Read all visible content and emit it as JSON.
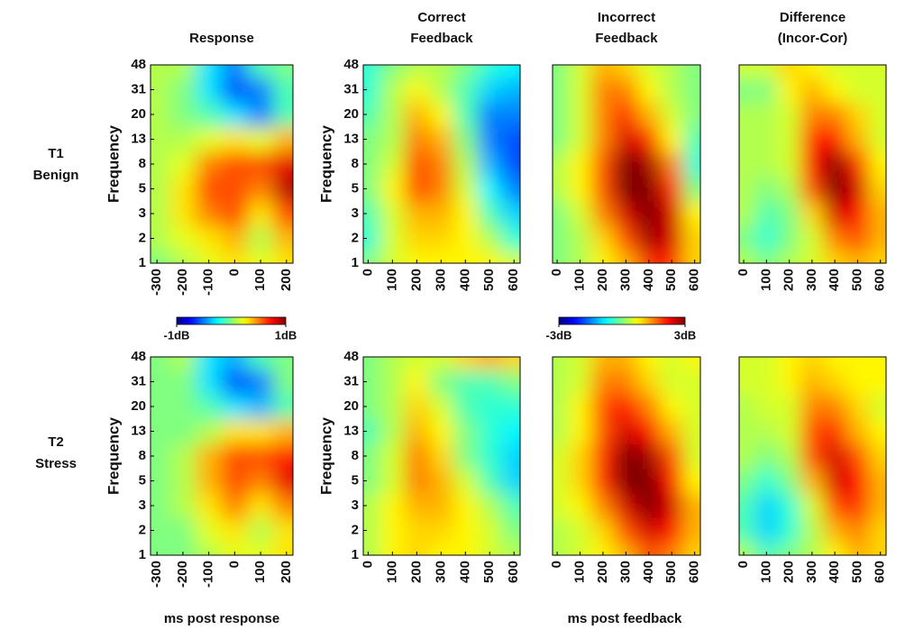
{
  "chart_data": [
    {
      "type": "heatmap",
      "title": [
        "Response"
      ],
      "ylabel": "Frequency",
      "colormap": "jet",
      "zlim": [
        -1,
        1
      ],
      "xlim": [
        -325,
        225
      ],
      "x": [
        -300,
        -200,
        -100,
        0,
        100,
        200
      ],
      "y": [
        1,
        2,
        3,
        5,
        8,
        13,
        20,
        31,
        48
      ],
      "z": [
        [
          0,
          0.1,
          0.2,
          0.3,
          0.2,
          0.3
        ],
        [
          0.1,
          0.2,
          0.3,
          0.4,
          0.1,
          0.4
        ],
        [
          0.1,
          0.3,
          0.5,
          0.6,
          0.3,
          0.6
        ],
        [
          0.1,
          0.3,
          0.6,
          0.6,
          0.5,
          0.9
        ],
        [
          0.1,
          0.2,
          0.5,
          0.6,
          0.6,
          0.8
        ],
        [
          0.1,
          0.1,
          0.2,
          0.3,
          0.2,
          0.4
        ],
        [
          0.1,
          0,
          -0.1,
          -0.3,
          -0.5,
          -0.1
        ],
        [
          0.1,
          0,
          -0.3,
          -0.6,
          -0.5,
          -0.1
        ],
        [
          0.1,
          0.1,
          -0.3,
          -0.5,
          -0.1,
          0
        ]
      ]
    },
    {
      "type": "heatmap",
      "title": [
        "Correct",
        "Feedback"
      ],
      "ylabel": "Frequency",
      "colormap": "jet",
      "zlim": [
        -3,
        3
      ],
      "xlim": [
        -20,
        625
      ],
      "x": [
        0,
        100,
        200,
        300,
        400,
        500,
        600
      ],
      "y": [
        1,
        2,
        3,
        5,
        8,
        13,
        20,
        31,
        48
      ],
      "z": [
        [
          0,
          0.5,
          0.8,
          0.8,
          0.8,
          0.8,
          0.5
        ],
        [
          -0.5,
          0.5,
          1,
          1,
          0.8,
          0.3,
          -0.5
        ],
        [
          -0.3,
          0.5,
          1.2,
          1.2,
          0.8,
          -0.3,
          -1
        ],
        [
          0,
          0.8,
          1.8,
          1.5,
          0.5,
          -0.8,
          -1.5
        ],
        [
          0,
          0.5,
          1.8,
          1.5,
          0.3,
          -1.2,
          -1.8
        ],
        [
          0,
          0.3,
          1.5,
          1.2,
          0,
          -1.5,
          -1.8
        ],
        [
          -0.3,
          0.3,
          1.2,
          0.8,
          -0.3,
          -1.5,
          -1.5
        ],
        [
          -0.5,
          0.3,
          0.8,
          0.3,
          -0.3,
          -1,
          -1.2
        ],
        [
          -0.5,
          0,
          0.3,
          0.3,
          0,
          -0.5,
          -0.8
        ]
      ]
    },
    {
      "type": "heatmap",
      "title": [
        "Incorrect",
        "Feedback"
      ],
      "colormap": "jet",
      "zlim": [
        -3,
        3
      ],
      "xlim": [
        -20,
        625
      ],
      "x": [
        0,
        100,
        200,
        300,
        400,
        500,
        600
      ],
      "z": [
        [
          0,
          0.3,
          0.8,
          1.2,
          2,
          2,
          1
        ],
        [
          0,
          0.3,
          1,
          1.8,
          2.8,
          2.5,
          1
        ],
        [
          0,
          0.5,
          1.5,
          2.5,
          3,
          2.5,
          0.8
        ],
        [
          0.3,
          0.8,
          1.8,
          3,
          3,
          2,
          0
        ],
        [
          0.3,
          0.8,
          1.8,
          3,
          2.8,
          1.5,
          -0.5
        ],
        [
          0,
          0.5,
          1.5,
          2.5,
          2,
          0.8,
          -0.3
        ],
        [
          0,
          0.5,
          1.5,
          2,
          1.2,
          0.5,
          0
        ],
        [
          0,
          0.5,
          1.5,
          1.5,
          0.8,
          0.3,
          0
        ],
        [
          0,
          0.5,
          1.2,
          1,
          0.5,
          0.3,
          0
        ]
      ]
    },
    {
      "type": "heatmap",
      "title": [
        "Difference",
        "(Incor-Cor)"
      ],
      "colormap": "jet",
      "zlim": [
        -3,
        3
      ],
      "xlim": [
        -20,
        625
      ],
      "x": [
        0,
        100,
        200,
        300,
        400,
        500,
        600
      ],
      "z": [
        [
          0.3,
          0,
          0.3,
          0.5,
          1,
          1.2,
          1
        ],
        [
          0,
          -0.5,
          0,
          0.5,
          1.5,
          1.8,
          1.2
        ],
        [
          0.3,
          -0.3,
          0,
          1,
          2.5,
          2.2,
          1.2
        ],
        [
          0.3,
          0,
          0.3,
          1.8,
          3,
          2.5,
          1
        ],
        [
          0.3,
          0.3,
          0.5,
          2.2,
          3,
          2,
          0.8
        ],
        [
          0.3,
          0.3,
          0.5,
          2,
          2.2,
          1.2,
          0.5
        ],
        [
          0.3,
          0.3,
          0.5,
          1.5,
          1.5,
          1,
          0.5
        ],
        [
          0,
          0,
          0.8,
          1.2,
          0.8,
          0.5,
          0.5
        ],
        [
          0.5,
          0.5,
          1,
          0.8,
          0.5,
          0.5,
          0.5
        ]
      ]
    },
    {
      "type": "heatmap",
      "ylabel": "Frequency",
      "colormap": "jet",
      "zlim": [
        -1,
        1
      ],
      "xlim": [
        -325,
        225
      ],
      "x": [
        -300,
        -200,
        -100,
        0,
        100,
        200
      ],
      "y": [
        1,
        2,
        3,
        5,
        8,
        13,
        20,
        31,
        48
      ],
      "z": [
        [
          0,
          0,
          0.1,
          0.2,
          0.2,
          0.3
        ],
        [
          0,
          0,
          0.2,
          0.3,
          0.1,
          0.3
        ],
        [
          0,
          0.1,
          0.3,
          0.5,
          0.3,
          0.5
        ],
        [
          0,
          0.1,
          0.4,
          0.6,
          0.5,
          0.8
        ],
        [
          0,
          0.1,
          0.4,
          0.6,
          0.6,
          0.7
        ],
        [
          0,
          0,
          0.1,
          0.3,
          0.3,
          0.4
        ],
        [
          0,
          0,
          -0.1,
          -0.3,
          -0.4,
          -0.1
        ],
        [
          0,
          0,
          -0.3,
          -0.6,
          -0.5,
          0
        ],
        [
          0,
          0.1,
          -0.3,
          -0.4,
          -0.1,
          0
        ]
      ]
    },
    {
      "type": "heatmap",
      "ylabel": "Frequency",
      "colormap": "jet",
      "zlim": [
        -3,
        3
      ],
      "xlim": [
        -20,
        625
      ],
      "x": [
        0,
        100,
        200,
        300,
        400,
        500,
        600
      ],
      "y": [
        1,
        2,
        3,
        5,
        8,
        13,
        20,
        31,
        48
      ],
      "z": [
        [
          0.3,
          0.8,
          1,
          0.8,
          0.8,
          0.5,
          0.3
        ],
        [
          0.3,
          0.8,
          1,
          1,
          0.8,
          0.5,
          0
        ],
        [
          0.3,
          0.8,
          1.2,
          1.2,
          0.8,
          0.3,
          -0.3
        ],
        [
          0,
          0.5,
          1.5,
          1.2,
          0.5,
          -0.3,
          -1
        ],
        [
          0,
          0.5,
          1.5,
          1,
          0,
          -0.5,
          -1
        ],
        [
          -0.3,
          0.3,
          1.2,
          0.8,
          0,
          -0.5,
          -0.8
        ],
        [
          0,
          0.3,
          1,
          0.5,
          -0.3,
          -0.5,
          -0.5
        ],
        [
          0,
          0.3,
          0.8,
          0,
          -0.3,
          -0.3,
          0
        ],
        [
          0,
          0.3,
          0.5,
          0.5,
          1,
          1.2,
          1
        ]
      ]
    },
    {
      "type": "heatmap",
      "colormap": "jet",
      "zlim": [
        -3,
        3
      ],
      "xlim": [
        -20,
        625
      ],
      "x": [
        0,
        100,
        200,
        300,
        400,
        500,
        600
      ],
      "z": [
        [
          0.3,
          0.5,
          0.8,
          1.2,
          1.8,
          1.5,
          1
        ],
        [
          0.3,
          0.5,
          1,
          1.8,
          2.5,
          2.2,
          1.2
        ],
        [
          0.5,
          0.8,
          1.5,
          2.5,
          3,
          2.5,
          1.2
        ],
        [
          0.5,
          1,
          2,
          3,
          3,
          2.2,
          0.8
        ],
        [
          0.5,
          1,
          2,
          3,
          2.8,
          1.8,
          0.5
        ],
        [
          0.3,
          0.8,
          1.8,
          2.5,
          2.2,
          1.2,
          0.5
        ],
        [
          0.3,
          0.8,
          1.8,
          2.2,
          1.5,
          0.8,
          0.5
        ],
        [
          0.3,
          0.5,
          1.5,
          1.5,
          1,
          0.5,
          0.5
        ],
        [
          0.3,
          0.5,
          1.2,
          1.2,
          0.8,
          0.5,
          0.8
        ]
      ]
    },
    {
      "type": "heatmap",
      "colormap": "jet",
      "zlim": [
        -3,
        3
      ],
      "xlim": [
        -20,
        625
      ],
      "x": [
        0,
        100,
        200,
        300,
        400,
        500,
        600
      ],
      "z": [
        [
          0.3,
          -0.3,
          0,
          0.3,
          0.8,
          1.2,
          1
        ],
        [
          -0.3,
          -1,
          -0.5,
          0.3,
          1.2,
          1.5,
          1
        ],
        [
          -0.3,
          -1,
          -0.5,
          0.5,
          1.8,
          2,
          1.2
        ],
        [
          0,
          -0.5,
          0,
          1.2,
          2.5,
          2.2,
          1.2
        ],
        [
          0.3,
          0,
          0.3,
          1.8,
          2.5,
          1.8,
          1
        ],
        [
          0.3,
          0.3,
          0.5,
          1.8,
          2,
          1.2,
          0.8
        ],
        [
          0.3,
          0.5,
          0.5,
          1.5,
          1.5,
          1,
          0.5
        ],
        [
          0.5,
          0.5,
          0.8,
          1.2,
          1,
          0.8,
          0.8
        ],
        [
          0.5,
          0.5,
          0.8,
          1,
          0.8,
          0.8,
          0.8
        ]
      ]
    }
  ],
  "row_labels": [
    [
      "T1",
      "Benign"
    ],
    [
      "T2",
      "Stress"
    ]
  ],
  "x_labels": [
    "ms post response",
    "ms post feedback"
  ],
  "colorbars": [
    {
      "colormap": "jet",
      "zlim": [
        -1,
        1
      ],
      "ticks": [
        {
          "value": -1,
          "label": "-1dB"
        },
        {
          "value": 1,
          "label": "1dB"
        }
      ]
    },
    {
      "colormap": "jet",
      "zlim": [
        -3,
        3
      ],
      "ticks": [
        {
          "value": -3,
          "label": "-3dB"
        },
        {
          "value": 3,
          "label": "3dB"
        }
      ]
    }
  ]
}
